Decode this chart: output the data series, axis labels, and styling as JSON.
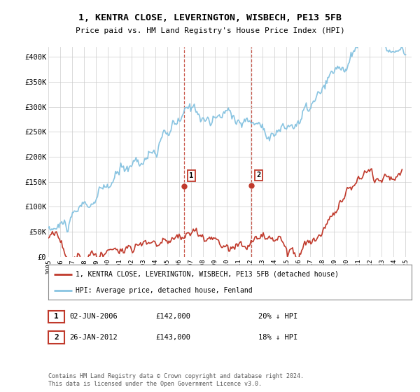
{
  "title": "1, KENTRA CLOSE, LEVERINGTON, WISBECH, PE13 5FB",
  "subtitle": "Price paid vs. HM Land Registry's House Price Index (HPI)",
  "yticks": [
    0,
    50000,
    100000,
    150000,
    200000,
    250000,
    300000,
    350000,
    400000
  ],
  "ytick_labels": [
    "£0",
    "£50K",
    "£100K",
    "£150K",
    "£200K",
    "£250K",
    "£300K",
    "£350K",
    "£400K"
  ],
  "xlim_start": 1995.0,
  "xlim_end": 2025.5,
  "ylim": [
    0,
    420000
  ],
  "hpi_color": "#89c4e1",
  "property_color": "#c0392b",
  "dashed_line_color": "#c0392b",
  "transaction1_year": 2006.42,
  "transaction1_price": 142000,
  "transaction2_year": 2012.07,
  "transaction2_price": 143000,
  "legend_property": "1, KENTRA CLOSE, LEVERINGTON, WISBECH, PE13 5FB (detached house)",
  "legend_hpi": "HPI: Average price, detached house, Fenland",
  "transaction1_date": "02-JUN-2006",
  "transaction1_price_str": "£142,000",
  "transaction1_pct": "20% ↓ HPI",
  "transaction2_date": "26-JAN-2012",
  "transaction2_price_str": "£143,000",
  "transaction2_pct": "18% ↓ HPI",
  "footer": "Contains HM Land Registry data © Crown copyright and database right 2024.\nThis data is licensed under the Open Government Licence v3.0.",
  "background_color": "#ffffff",
  "grid_color": "#cccccc"
}
